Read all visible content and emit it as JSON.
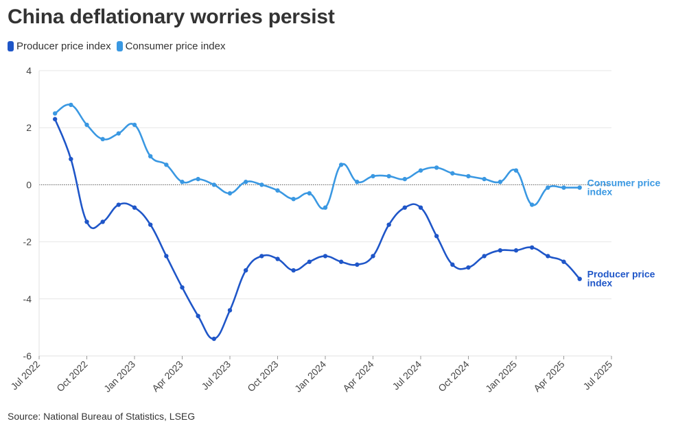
{
  "title": "China deflationary worries persist",
  "source": "Source: National Bureau of Statistics, LSEG",
  "colors": {
    "ppi": "#1f56c8",
    "cpi": "#3a98e2",
    "grid": "#e6e6e6",
    "zero": "#555555"
  },
  "chart_data": {
    "type": "line",
    "title": "China deflationary worries persist",
    "xlabel": "",
    "ylabel": "",
    "ylim": [
      -6,
      4
    ],
    "yticks": [
      4,
      2,
      0,
      -2,
      -4,
      -6
    ],
    "ytick_labels": [
      "4",
      "2",
      "0",
      "-2",
      "-4",
      "-6"
    ],
    "xlim": [
      "2022-07",
      "2025-07"
    ],
    "xtick_labels": [
      "Jul 2022",
      "Oct 2022",
      "Jan 2023",
      "Apr 2023",
      "Jul 2023",
      "Oct 2023",
      "Jan 2024",
      "Apr 2024",
      "Jul 2024",
      "Oct 2024",
      "Jan 2025",
      "Apr 2025",
      "Jul 2025"
    ],
    "x": [
      "2022-08",
      "2022-09",
      "2022-10",
      "2022-11",
      "2022-12",
      "2023-01",
      "2023-02",
      "2023-03",
      "2023-04",
      "2023-05",
      "2023-06",
      "2023-07",
      "2023-08",
      "2023-09",
      "2023-10",
      "2023-11",
      "2023-12",
      "2024-01",
      "2024-02",
      "2024-03",
      "2024-04",
      "2024-05",
      "2024-06",
      "2024-07",
      "2024-08",
      "2024-09",
      "2024-10",
      "2024-11",
      "2024-12",
      "2025-01",
      "2025-02",
      "2025-03",
      "2025-04",
      "2025-05"
    ],
    "grid": true,
    "legend": "top-left",
    "series": [
      {
        "name": "Producer price index",
        "end_label": [
          "Producer price",
          "index"
        ],
        "values": [
          2.3,
          0.9,
          -1.3,
          -1.3,
          -0.7,
          -0.8,
          -1.4,
          -2.5,
          -3.6,
          -4.6,
          -5.4,
          -4.4,
          -3.0,
          -2.5,
          -2.6,
          -3.0,
          -2.7,
          -2.5,
          -2.7,
          -2.8,
          -2.5,
          -1.4,
          -0.8,
          -0.8,
          -1.8,
          -2.8,
          -2.9,
          -2.5,
          -2.3,
          -2.3,
          -2.2,
          -2.5,
          -2.7,
          -3.3
        ]
      },
      {
        "name": "Consumer price index",
        "end_label": [
          "Consumer price",
          "index"
        ],
        "values": [
          2.5,
          2.8,
          2.1,
          1.6,
          1.8,
          2.1,
          1.0,
          0.7,
          0.1,
          0.2,
          0.0,
          -0.3,
          0.1,
          0.0,
          -0.2,
          -0.5,
          -0.3,
          -0.8,
          0.7,
          0.1,
          0.3,
          0.3,
          0.2,
          0.5,
          0.6,
          0.4,
          0.3,
          0.2,
          0.1,
          0.5,
          -0.7,
          -0.1,
          -0.1,
          -0.1
        ]
      }
    ]
  }
}
